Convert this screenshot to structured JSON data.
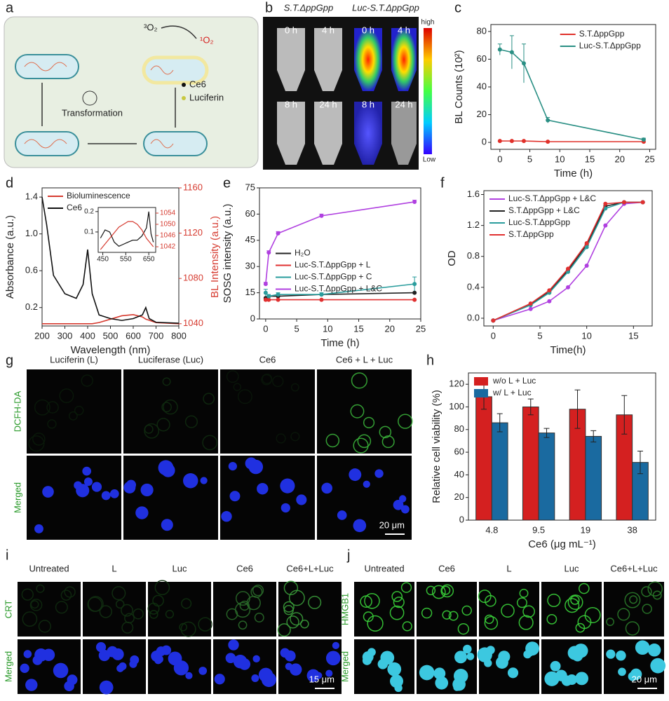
{
  "figure": {
    "letters": [
      "a",
      "b",
      "c",
      "d",
      "e",
      "f",
      "g",
      "h",
      "i",
      "j"
    ],
    "a": {
      "oxygen_in": "³O₂",
      "oxygen_out": "¹O₂",
      "step": "Transformation",
      "legend": [
        "Ce6",
        "Luciferin"
      ]
    },
    "b": {
      "groups": [
        "S.T.ΔppGpp",
        "Luc-S.T.ΔppGpp"
      ],
      "times": [
        "0 h",
        "4 h",
        "0 h",
        "4 h",
        "8 h",
        "24 h",
        "8 h",
        "24 h"
      ],
      "scale": [
        "high",
        "Low"
      ]
    },
    "g": {
      "columns": [
        "Luciferin (L)",
        "Luciferase (Luc)",
        "Ce6",
        "Ce6 + L + Luc"
      ],
      "rows": [
        "DCFH-DA",
        "Merged"
      ],
      "scale_bar": "20 μm"
    },
    "i": {
      "columns": [
        "Untreated",
        "L",
        "Luc",
        "Ce6",
        "Ce6+L+Luc"
      ],
      "rows": [
        "CRT",
        "Merged"
      ],
      "scale_bar": "15 μm"
    },
    "j": {
      "columns": [
        "Untreated",
        "Ce6",
        "L",
        "Luc",
        "Ce6+L+Luc"
      ],
      "rows": [
        "HMGB1",
        "Merged"
      ],
      "scale_bar": "20 μm"
    }
  },
  "chart_data": [
    {
      "type": "line",
      "xlabel": "Time (h)",
      "ylabel": "BL Counts (10²)",
      "x": [
        0,
        2,
        4,
        8,
        24
      ],
      "series": [
        {
          "name": "S.T.ΔppGpp",
          "color": "#e0302a",
          "values": [
            1,
            1,
            1,
            0.5,
            0.5
          ]
        },
        {
          "name": "Luc-S.T.ΔppGpp",
          "color": "#2a8f84",
          "values": [
            67,
            65,
            57,
            16,
            2
          ],
          "errors": [
            4,
            12,
            14,
            2,
            1
          ]
        }
      ],
      "xlim": [
        -1.5,
        26
      ],
      "xticks": [
        0,
        5,
        10,
        15,
        20,
        25
      ],
      "ylim": [
        -5,
        85
      ],
      "yticks": [
        0,
        20,
        40,
        60,
        80
      ],
      "markers": true,
      "legend": "upper right"
    },
    {
      "type": "line",
      "xlabel": "Wavelength (nm)",
      "ylabel": "Absorbance (a.u.)",
      "y2label": "BL Intensity (a.u.)",
      "y2color": "#d63b30",
      "x": [
        200,
        220,
        250,
        300,
        350,
        380,
        400,
        420,
        450,
        500,
        550,
        600,
        640,
        655,
        670,
        700,
        800
      ],
      "series": [
        {
          "name": "Bioluminescence",
          "color": "#d63b30",
          "axis": "y2",
          "values": [
            1040,
            1040,
            1040,
            1040,
            1040,
            1040,
            1040,
            1040,
            1041,
            1044,
            1047,
            1048,
            1046,
            1044,
            1043,
            1041,
            1040
          ]
        },
        {
          "name": "Ce6",
          "color": "#111111",
          "values": [
            1.4,
            1.1,
            0.55,
            0.35,
            0.3,
            0.45,
            0.83,
            0.35,
            0.12,
            0.08,
            0.06,
            0.08,
            0.12,
            0.2,
            0.08,
            0.04,
            0.03
          ]
        }
      ],
      "xlim": [
        200,
        800
      ],
      "xticks": [
        200,
        300,
        400,
        500,
        600,
        700,
        800
      ],
      "ylim": [
        0,
        1.5
      ],
      "yticks": [
        0.2,
        0.6,
        {
          "value": 1,
          "label": "1.0"
        },
        1.4
      ],
      "y2lim": [
        1038,
        1160
      ],
      "y2ticks": [
        1040,
        1080,
        1120,
        1160
      ],
      "markers": false,
      "legend": "upper left"
    },
    {
      "type": "line",
      "x": [
        440,
        460,
        480,
        500,
        520,
        540,
        560,
        580,
        600,
        620,
        640,
        650,
        660,
        670
      ],
      "series": [
        {
          "name": "Ce6",
          "color": "#111111",
          "values": [
            0.07,
            0.11,
            0.1,
            0.05,
            0.03,
            0.04,
            0.05,
            0.06,
            0.06,
            0.08,
            0.12,
            0.2,
            0.09,
            0.05
          ]
        },
        {
          "name": "Bioluminescence",
          "color": "#d63b30",
          "axis": "y2",
          "values": [
            1041,
            1043,
            1045,
            1047,
            1049,
            1050,
            1051,
            1051,
            1050,
            1048,
            1045,
            1044,
            1043,
            1042
          ]
        }
      ],
      "xlim": [
        430,
        680
      ],
      "xticks": [
        450,
        550,
        650
      ],
      "ylim": [
        0,
        0.22
      ],
      "yticks": [
        0.1,
        0.2
      ],
      "y2lim": [
        1040,
        1056
      ],
      "y2ticks": [
        1042,
        1046,
        1050,
        1054
      ],
      "y2color": "#d63b30",
      "markers": false
    },
    {
      "type": "line",
      "xlabel": "Time (h)",
      "ylabel": "SOSG intensity (a.u.)",
      "x": [
        0,
        0.5,
        2,
        9,
        24
      ],
      "series": [
        {
          "name": "H₂O",
          "color": "#222222",
          "values": [
            12,
            13,
            13,
            14,
            15
          ]
        },
        {
          "name": "Luc-S.T.ΔppGpp + L",
          "color": "#e03030",
          "values": [
            11,
            11,
            11,
            11,
            11
          ]
        },
        {
          "name": "Luc-S.T.ΔppGpp + C",
          "color": "#2a9d9d",
          "values": [
            15,
            13,
            14,
            14,
            20
          ],
          "errors": [
            2,
            1,
            1,
            1,
            4
          ]
        },
        {
          "name": "Luc-S.T.ΔppGpp + L&C",
          "color": "#b040e0",
          "values": [
            20,
            38,
            49,
            59,
            67
          ],
          "errors": [
            1,
            1,
            1,
            1,
            1
          ]
        }
      ],
      "xlim": [
        -1,
        25
      ],
      "xticks": [
        0,
        5,
        10,
        15,
        20,
        25
      ],
      "ylim": [
        0,
        75
      ],
      "yticks": [
        0,
        15,
        30,
        45,
        60,
        75
      ],
      "markers": true,
      "legend": "lower right"
    },
    {
      "type": "line",
      "xlabel": "Time(h)",
      "ylabel": "OD",
      "x": [
        0,
        4,
        6,
        8,
        10,
        12,
        14,
        16
      ],
      "series": [
        {
          "name": "Luc-S.T.ΔppGpp + L&C",
          "color": "#b040e0",
          "values": [
            -0.03,
            0.12,
            0.22,
            0.4,
            0.68,
            1.2,
            1.48,
            1.5
          ]
        },
        {
          "name": "S.T.ΔppGpp + L&C",
          "color": "#222222",
          "values": [
            -0.03,
            0.18,
            0.35,
            0.62,
            0.95,
            1.45,
            1.5,
            1.5
          ]
        },
        {
          "name": "Luc-S.T.ΔppGpp",
          "color": "#2a9d9d",
          "values": [
            -0.03,
            0.17,
            0.33,
            0.6,
            0.92,
            1.42,
            1.5,
            1.5
          ]
        },
        {
          "name": "S.T.ΔppGpp",
          "color": "#e03030",
          "values": [
            -0.03,
            0.19,
            0.36,
            0.64,
            0.97,
            1.48,
            1.5,
            1.5
          ]
        }
      ],
      "xlim": [
        -1,
        17
      ],
      "xticks": [
        0,
        5,
        10,
        15
      ],
      "ylim": [
        -0.1,
        1.65
      ],
      "yticks": [
        {
          "value": 0,
          "label": "0.0"
        },
        0.4,
        0.8,
        1.2,
        1.6
      ],
      "markers": true,
      "legend": "upper left"
    },
    {
      "type": "bar",
      "xlabel": "Ce6 (μg mL⁻¹)",
      "ylabel": "Relative cell viability (%)",
      "categories": [
        "4.8",
        "9.5",
        "19",
        "38"
      ],
      "series": [
        {
          "name": "w/o L + Luc",
          "color": "#d42020",
          "values": [
            109,
            100,
            98,
            93
          ],
          "errors": [
            11,
            7,
            17,
            17
          ]
        },
        {
          "name": "w/   L + Luc",
          "color": "#1a6aa0",
          "values": [
            86,
            77,
            74,
            51
          ],
          "errors": [
            8,
            4,
            5,
            10
          ]
        }
      ],
      "ylim": [
        0,
        130
      ],
      "yticks": [
        0,
        20,
        40,
        60,
        80,
        100,
        120
      ],
      "legend": "upper left"
    }
  ]
}
